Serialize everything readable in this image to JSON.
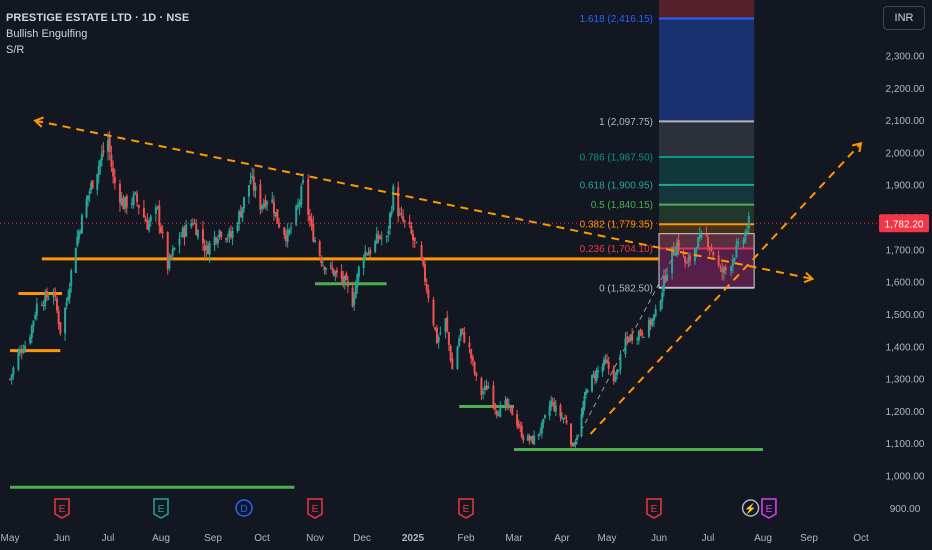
{
  "header": {
    "title": "PRESTIGE ESTATE LTD · 1D · NSE",
    "indicator1": "Bullish Engulfing",
    "indicator2": "S/R"
  },
  "currency_button": "INR",
  "last_price": "1,782.20",
  "colors": {
    "background": "#131722",
    "up": "#26a69a",
    "down": "#ef5350",
    "trendline": "#ff9800",
    "support": "#4caf50",
    "price_tag": "#f23645",
    "text": "#d1d4dc",
    "axis_text": "#b2b5be"
  },
  "fib_levels": [
    {
      "ratio": "1.618",
      "label": "1.618 (2,416.15)",
      "value": 2416.15,
      "color": "#2962ff"
    },
    {
      "ratio": "1",
      "label": "1 (2,097.75)",
      "value": 2097.75,
      "color": "#b2b5be"
    },
    {
      "ratio": "0.786",
      "label": "0.786 (1,987.50)",
      "value": 1987.5,
      "color": "#089981"
    },
    {
      "ratio": "0.618",
      "label": "0.618 (1,900.95)",
      "value": 1900.95,
      "color": "#26a69a"
    },
    {
      "ratio": "0.5",
      "label": "0.5 (1,840.15)",
      "value": 1840.15,
      "color": "#4caf50"
    },
    {
      "ratio": "0.382",
      "label": "0.382 (1,779.35)",
      "value": 1779.35,
      "color": "#ff9800"
    },
    {
      "ratio": "0.236",
      "label": "0.236 (1,704.10)",
      "value": 1704.1,
      "color": "#f23645"
    },
    {
      "ratio": "0",
      "label": "0 (1,582.50)",
      "value": 1582.5,
      "color": "#b2b5be"
    }
  ],
  "event_markers": [
    {
      "label": "E",
      "date": "2024-06-01",
      "color": "#f23645"
    },
    {
      "label": "E",
      "date": "2024-08-01",
      "color": "#26a69a"
    },
    {
      "label": "D",
      "date": "2024-09-20",
      "color": "#2962ff"
    },
    {
      "label": "E",
      "date": "2024-11-01",
      "color": "#f23645"
    },
    {
      "label": "E",
      "date": "2025-02-01",
      "color": "#f23645"
    },
    {
      "label": "E",
      "date": "2025-05-29",
      "color": "#f23645"
    },
    {
      "label": "⚡",
      "date": "2025-07-25",
      "color": "#b2b5be"
    },
    {
      "label": "E",
      "date": "2025-08-05",
      "color": "#e040fb"
    }
  ],
  "chart_data": {
    "type": "candlestick",
    "title": "PRESTIGE ESTATE LTD · 1D · NSE",
    "x_axis": {
      "type": "date",
      "range": [
        "2024-05-01",
        "2025-10-15"
      ],
      "tick_labels": [
        "May",
        "Jun",
        "Jul",
        "Aug",
        "Sep",
        "Oct",
        "Nov",
        "Dec",
        "2025",
        "Feb",
        "Mar",
        "Apr",
        "May",
        "Jun",
        "Jul",
        "Aug",
        "Sep",
        "Oct"
      ],
      "tick_dates": [
        "2024-05-01",
        "2024-06-01",
        "2024-07-01",
        "2024-08-01",
        "2024-09-01",
        "2024-10-01",
        "2024-11-01",
        "2024-12-01",
        "2025-01-01",
        "2025-02-01",
        "2025-03-01",
        "2025-04-01",
        "2025-05-01",
        "2025-06-01",
        "2025-07-01",
        "2025-08-01",
        "2025-09-01",
        "2025-10-01"
      ]
    },
    "y_axis": {
      "position": "right",
      "range": [
        880,
        2440
      ],
      "tick_values": [
        900,
        1000,
        1100,
        1200,
        1300,
        1400,
        1500,
        1600,
        1700,
        1800,
        1900,
        2000,
        2100,
        2200,
        2300
      ],
      "tick_labels": [
        "900.00",
        "1,000.00",
        "1,100.00",
        "1,200.00",
        "1,300.00",
        "1,400.00",
        "1,500.00",
        "1,600.00",
        "1,700.00",
        "1,800.00",
        "1,900.00",
        "2,000.00",
        "2,100.00",
        "2,200.00",
        "2,300.00"
      ],
      "grid": false
    },
    "price_path": [
      [
        "2024-05-01",
        1300
      ],
      [
        "2024-05-06",
        1380
      ],
      [
        "2024-05-12",
        1420
      ],
      [
        "2024-05-17",
        1530
      ],
      [
        "2024-05-22",
        1550
      ],
      [
        "2024-05-27",
        1570
      ],
      [
        "2024-05-31",
        1450
      ],
      [
        "2024-06-04",
        1540
      ],
      [
        "2024-06-10",
        1720
      ],
      [
        "2024-06-18",
        1870
      ],
      [
        "2024-06-24",
        1950
      ],
      [
        "2024-06-27",
        1990
      ],
      [
        "2024-07-01",
        2040
      ],
      [
        "2024-07-04",
        1920
      ],
      [
        "2024-07-10",
        1840
      ],
      [
        "2024-07-17",
        1860
      ],
      [
        "2024-07-24",
        1780
      ],
      [
        "2024-07-30",
        1820
      ],
      [
        "2024-08-05",
        1650
      ],
      [
        "2024-08-12",
        1740
      ],
      [
        "2024-08-20",
        1790
      ],
      [
        "2024-08-28",
        1700
      ],
      [
        "2024-09-05",
        1760
      ],
      [
        "2024-09-12",
        1740
      ],
      [
        "2024-09-18",
        1820
      ],
      [
        "2024-09-24",
        1920
      ],
      [
        "2024-09-30",
        1840
      ],
      [
        "2024-10-06",
        1870
      ],
      [
        "2024-10-10",
        1790
      ],
      [
        "2024-10-16",
        1740
      ],
      [
        "2024-10-22",
        1830
      ],
      [
        "2024-10-25",
        1900
      ],
      [
        "2024-10-30",
        1760
      ],
      [
        "2024-11-06",
        1660
      ],
      [
        "2024-11-13",
        1630
      ],
      [
        "2024-11-20",
        1600
      ],
      [
        "2024-11-25",
        1540
      ],
      [
        "2024-12-01",
        1690
      ],
      [
        "2024-12-07",
        1700
      ],
      [
        "2024-12-11",
        1740
      ],
      [
        "2024-12-16",
        1730
      ],
      [
        "2024-12-20",
        1880
      ],
      [
        "2024-12-24",
        1800
      ],
      [
        "2024-12-30",
        1760
      ],
      [
        "2025-01-06",
        1660
      ],
      [
        "2025-01-10",
        1560
      ],
      [
        "2025-01-15",
        1420
      ],
      [
        "2025-01-20",
        1480
      ],
      [
        "2025-01-24",
        1330
      ],
      [
        "2025-01-29",
        1450
      ],
      [
        "2025-02-03",
        1390
      ],
      [
        "2025-02-09",
        1250
      ],
      [
        "2025-02-14",
        1280
      ],
      [
        "2025-02-19",
        1200
      ],
      [
        "2025-02-24",
        1220
      ],
      [
        "2025-03-01",
        1190
      ],
      [
        "2025-03-07",
        1120
      ],
      [
        "2025-03-13",
        1110
      ],
      [
        "2025-03-19",
        1150
      ],
      [
        "2025-03-25",
        1230
      ],
      [
        "2025-03-30",
        1190
      ],
      [
        "2025-04-04",
        1170
      ],
      [
        "2025-04-08",
        1090
      ],
      [
        "2025-04-12",
        1140
      ],
      [
        "2025-04-18",
        1280
      ],
      [
        "2025-04-24",
        1320
      ],
      [
        "2025-04-30",
        1350
      ],
      [
        "2025-05-06",
        1300
      ],
      [
        "2025-05-12",
        1420
      ],
      [
        "2025-05-18",
        1440
      ],
      [
        "2025-05-24",
        1450
      ],
      [
        "2025-05-30",
        1500
      ],
      [
        "2025-06-04",
        1600
      ],
      [
        "2025-06-08",
        1680
      ],
      [
        "2025-06-12",
        1720
      ],
      [
        "2025-06-18",
        1650
      ],
      [
        "2025-06-24",
        1720
      ],
      [
        "2025-06-30",
        1740
      ],
      [
        "2025-07-04",
        1690
      ],
      [
        "2025-07-08",
        1630
      ],
      [
        "2025-07-12",
        1640
      ],
      [
        "2025-07-16",
        1690
      ],
      [
        "2025-07-20",
        1720
      ],
      [
        "2025-07-24",
        1782.2
      ]
    ],
    "drawings": {
      "resistance_trendline": {
        "from": [
          "2024-05-16",
          2100
        ],
        "to": [
          "2025-09-03",
          1610
        ],
        "style": "dashed"
      },
      "support_trendline": {
        "from": [
          "2025-04-20",
          1130
        ],
        "to": [
          "2025-10-01",
          2030
        ],
        "style": "dashed"
      },
      "sr_lines": [
        {
          "from": "2024-05-01",
          "to": "2024-05-31",
          "value": 1388,
          "color": "#ff9800"
        },
        {
          "from": "2024-05-06",
          "to": "2024-06-01",
          "value": 1565,
          "color": "#ff9800"
        },
        {
          "from": "2024-05-20",
          "to": "2025-06-01",
          "value": 1672,
          "color": "#ff9800"
        },
        {
          "from": "2024-11-01",
          "to": "2024-12-16",
          "value": 1595,
          "color": "#4caf50"
        },
        {
          "from": "2025-01-28",
          "to": "2025-03-01",
          "value": 1215,
          "color": "#4caf50"
        },
        {
          "from": "2025-03-01",
          "to": "2025-08-01",
          "value": 1082,
          "color": "#4caf50"
        },
        {
          "from": "2024-05-01",
          "to": "2024-10-20",
          "value": 965,
          "color": "#4caf50"
        }
      ],
      "range_box": {
        "from": "2025-06-01",
        "to": "2025-07-27",
        "low": 1582.5,
        "high": 1750
      }
    }
  }
}
